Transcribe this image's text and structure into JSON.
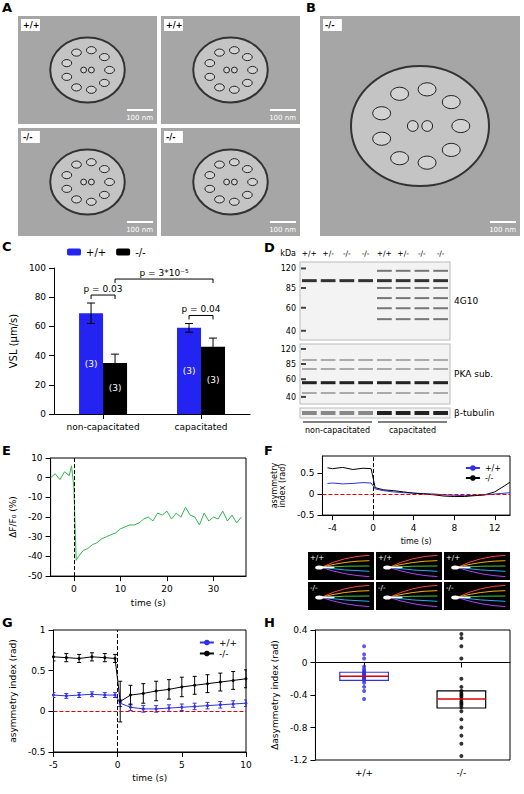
{
  "images": [
    {
      "panel": "A",
      "tiles": [
        {
          "label": "+/+",
          "scale_bar": "100 nm"
        },
        {
          "label": "+/+",
          "scale_bar": "100 nm"
        },
        {
          "label": "-/-",
          "scale_bar": "100 nm"
        },
        {
          "label": "-/-",
          "scale_bar": "100 nm"
        }
      ]
    },
    {
      "panel": "B",
      "tiles": [
        {
          "label": "-/-",
          "scale_bar": "100 nm"
        }
      ]
    }
  ],
  "blot": {
    "panel": "D",
    "unit": "kDa",
    "lanes": [
      "+/+",
      "+/-",
      "-/-",
      "-/-",
      "+/+",
      "+/-",
      "-/-",
      "-/-"
    ],
    "strips": [
      {
        "label": "4G10",
        "markers": [
          120,
          85,
          60,
          40
        ]
      },
      {
        "label": "PKA sub.",
        "markers": [
          120,
          85,
          60,
          40
        ]
      },
      {
        "label": "β-tubulin",
        "markers": []
      }
    ],
    "groups": [
      "non-capacitated",
      "capacitated"
    ]
  },
  "chart_data": [
    {
      "panel": "C",
      "type": "bar",
      "categories": [
        "non-capacitated",
        "capacitated"
      ],
      "ylabel": "VSL (μm/s)",
      "ylim": [
        0,
        100
      ],
      "yticks": [
        0,
        20,
        40,
        60,
        80,
        100
      ],
      "grid": false,
      "legend": "top",
      "series": [
        {
          "name": "+/+",
          "color": "#2424f2",
          "values": [
            69,
            59
          ],
          "errors": [
            7,
            3
          ],
          "n_labels": [
            "(3)",
            "(3)"
          ]
        },
        {
          "name": "-/-",
          "color": "#000000",
          "values": [
            35,
            46
          ],
          "errors": [
            6,
            6
          ],
          "n_labels": [
            "(3)",
            "(3)"
          ]
        }
      ],
      "annotations": [
        {
          "text": "p = 0.03",
          "from": {
            "category": "non-capacitated",
            "series": "+/+"
          },
          "to": {
            "category": "non-capacitated",
            "series": "-/-"
          }
        },
        {
          "text": "p = 0.04",
          "from": {
            "category": "capacitated",
            "series": "+/+"
          },
          "to": {
            "category": "capacitated",
            "series": "-/-"
          }
        },
        {
          "text": "p = 3*10⁻⁵",
          "from": {
            "category": "non-capacitated",
            "series": "-/-"
          },
          "to": {
            "category": "capacitated",
            "series": "-/-"
          }
        }
      ]
    },
    {
      "panel": "E",
      "type": "line",
      "xlabel": "time (s)",
      "ylabel": "ΔF/F₀ (%)",
      "xlim": [
        -5,
        37
      ],
      "xticks": [
        0,
        10,
        20,
        30
      ],
      "ylim": [
        -50,
        10
      ],
      "yticks": [
        -50,
        -40,
        -30,
        -20,
        -10,
        0,
        10
      ],
      "grid": false,
      "stimulus_time": 0,
      "x": [
        -5,
        -4,
        -3,
        -2,
        -1,
        -0.5,
        0,
        0.5,
        1,
        2,
        3,
        4,
        5,
        6,
        7,
        8,
        9,
        10,
        11,
        12,
        13,
        14,
        15,
        16,
        17,
        18,
        19,
        20,
        21,
        22,
        23,
        24,
        25,
        26,
        27,
        28,
        29,
        30,
        31,
        32,
        33,
        34,
        35,
        36
      ],
      "series": [
        {
          "color": "#2db84d",
          "values": [
            0,
            2,
            -1,
            3,
            1,
            6,
            -5,
            -42,
            -40,
            -37,
            -36,
            -34,
            -33,
            -31,
            -30,
            -29,
            -28,
            -26,
            -25,
            -24,
            -24,
            -23,
            -21,
            -20,
            -22,
            -18,
            -19,
            -17,
            -21,
            -18,
            -20,
            -15,
            -19,
            -20,
            -24,
            -18,
            -22,
            -20,
            -21,
            -17,
            -22,
            -19,
            -23,
            -20
          ]
        }
      ]
    },
    {
      "panel": "F",
      "type": "line",
      "xlabel": "time (s)",
      "ylabel": "asymmetry index (rad)",
      "xlim": [
        -5,
        13.5
      ],
      "xticks": [
        -4,
        0,
        4,
        8,
        12
      ],
      "ylim": [
        -0.5,
        0.9
      ],
      "yticks": [
        -0.5,
        0,
        0.5
      ],
      "grid": false,
      "legend": "upper right",
      "reference_line": 0,
      "stimulus_time": 0,
      "x": [
        -4.5,
        -4,
        -3,
        -2,
        -1,
        -0.2,
        0.2,
        1,
        2,
        3,
        4,
        5,
        6,
        7,
        8,
        9,
        10,
        11,
        12,
        13,
        13.5
      ],
      "series": [
        {
          "name": "+/+",
          "color": "#3030e6",
          "values": [
            0.25,
            0.26,
            0.24,
            0.25,
            0.27,
            0.26,
            0.12,
            0.08,
            0.05,
            0.03,
            0.02,
            0.01,
            0,
            -0.02,
            -0.03,
            -0.04,
            -0.03,
            -0.02,
            0,
            0.02,
            0.03
          ]
        },
        {
          "name": "-/-",
          "color": "#000000",
          "values": [
            0.62,
            0.6,
            0.63,
            0.58,
            0.61,
            0.6,
            0.15,
            0.1,
            0.08,
            0.05,
            0.02,
            0,
            -0.02,
            -0.05,
            -0.06,
            -0.06,
            -0.04,
            -0.02,
            0.05,
            0.2,
            0.28
          ]
        }
      ],
      "waveform_labels": [
        "+/+",
        "+/+",
        "+/+",
        "-/-",
        "-/-",
        "-/-"
      ]
    },
    {
      "panel": "G",
      "type": "line",
      "xlabel": "time (s)",
      "ylabel": "asymmetry index (rad)",
      "xlim": [
        -5,
        10
      ],
      "xticks": [
        -5,
        0,
        5,
        10
      ],
      "ylim": [
        -0.5,
        1
      ],
      "yticks": [
        -0.5,
        0,
        0.5,
        1
      ],
      "grid": false,
      "legend": "upper right",
      "reference_line": 0,
      "stimulus_time": 0,
      "x": [
        -5,
        -4,
        -3,
        -2,
        -1,
        -0.2,
        0.2,
        1,
        2,
        3,
        4,
        5,
        6,
        7,
        8,
        9,
        10
      ],
      "series": [
        {
          "name": "+/+",
          "color": "#3030e6",
          "marker": "circle",
          "values": [
            0.2,
            0.19,
            0.2,
            0.21,
            0.2,
            0.2,
            0.1,
            0.05,
            0.03,
            0.03,
            0.04,
            0.05,
            0.06,
            0.07,
            0.08,
            0.09,
            0.1
          ],
          "errors": [
            0.03,
            0.03,
            0.03,
            0.03,
            0.03,
            0.03,
            0.04,
            0.04,
            0.04,
            0.04,
            0.04,
            0.04,
            0.04,
            0.04,
            0.04,
            0.04,
            0.04
          ]
        },
        {
          "name": "-/-",
          "color": "#000000",
          "marker": "circle",
          "values": [
            0.67,
            0.66,
            0.65,
            0.67,
            0.66,
            0.65,
            0.12,
            0.2,
            0.22,
            0.25,
            0.27,
            0.3,
            0.32,
            0.34,
            0.36,
            0.38,
            0.4
          ],
          "errors": [
            0.05,
            0.05,
            0.05,
            0.05,
            0.05,
            0.05,
            0.25,
            0.12,
            0.12,
            0.12,
            0.12,
            0.12,
            0.11,
            0.11,
            0.11,
            0.11,
            0.11
          ]
        }
      ]
    },
    {
      "panel": "H",
      "type": "box",
      "ylabel": "Δasymmetry index (rad)",
      "categories": [
        "+/+",
        "-/-"
      ],
      "colors": [
        "#3030e6",
        "#000000"
      ],
      "ylim": [
        -1.2,
        0.4
      ],
      "yticks": [
        -1.2,
        -0.8,
        -0.4,
        0,
        0.4
      ],
      "grid": false,
      "q1": [
        -0.22,
        -0.56
      ],
      "median": [
        -0.17,
        -0.45
      ],
      "q3": [
        -0.12,
        -0.35
      ],
      "points": [
        [
          0.2,
          0.1,
          0.05,
          -0.05,
          -0.08,
          -0.1,
          -0.12,
          -0.13,
          -0.14,
          -0.15,
          -0.16,
          -0.17,
          -0.18,
          -0.19,
          -0.2,
          -0.21,
          -0.22,
          -0.25,
          -0.3,
          -0.35,
          -0.45
        ],
        [
          0.35,
          0.3,
          0.2,
          0.05,
          -0.2,
          -0.3,
          -0.35,
          -0.38,
          -0.4,
          -0.42,
          -0.45,
          -0.48,
          -0.5,
          -0.52,
          -0.55,
          -0.6,
          -0.7,
          -0.8,
          -0.9,
          -1.0,
          -1.15
        ]
      ]
    }
  ]
}
